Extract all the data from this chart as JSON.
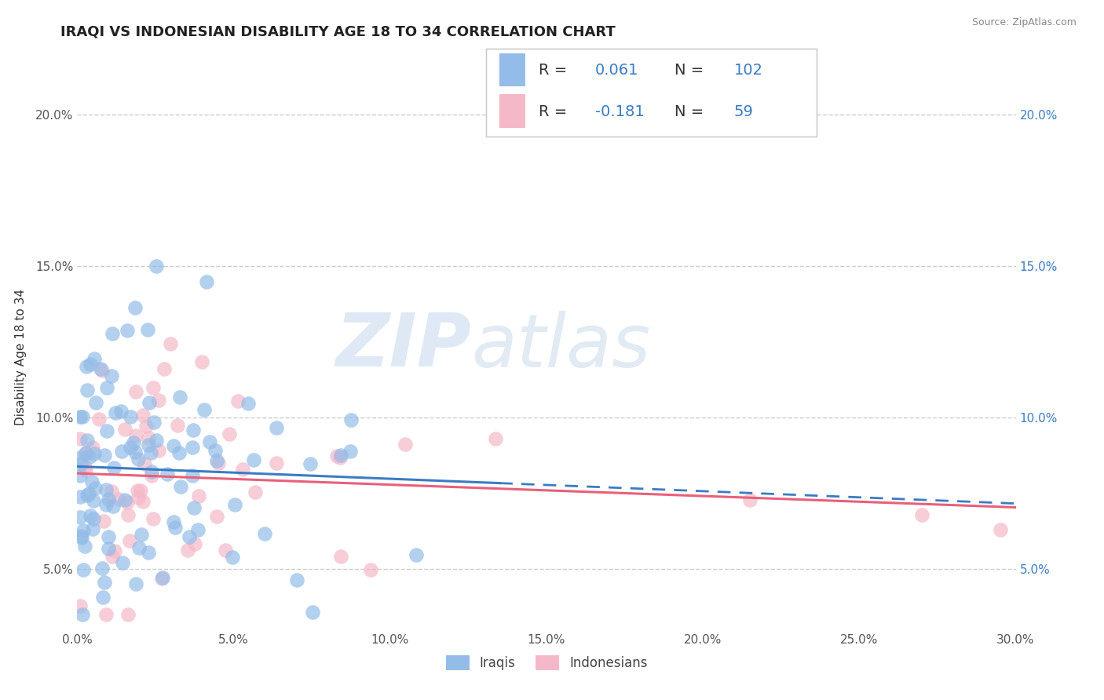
{
  "title": "IRAQI VS INDONESIAN DISABILITY AGE 18 TO 34 CORRELATION CHART",
  "ylabel": "Disability Age 18 to 34",
  "source_text": "Source: ZipAtlas.com",
  "xlim": [
    0.0,
    0.3
  ],
  "ylim": [
    0.03,
    0.21
  ],
  "xticks": [
    0.0,
    0.05,
    0.1,
    0.15,
    0.2,
    0.25,
    0.3
  ],
  "xtick_labels": [
    "0.0%",
    "5.0%",
    "10.0%",
    "15.0%",
    "20.0%",
    "25.0%",
    "30.0%"
  ],
  "yticks": [
    0.05,
    0.1,
    0.15,
    0.2
  ],
  "ytick_labels": [
    "5.0%",
    "10.0%",
    "15.0%",
    "20.0%"
  ],
  "iraqis_color": "#93bce8",
  "indonesians_color": "#f5b8c8",
  "iraqis_line_color": "#3a7cc4",
  "indonesians_line_color": "#e8607a",
  "R_iraqis": 0.061,
  "N_iraqis": 102,
  "R_indonesians": -0.181,
  "N_indonesians": 59,
  "legend_label_iraqis": "Iraqis",
  "legend_label_indonesians": "Indonesians",
  "watermark_zip": "ZIP",
  "watermark_atlas": "atlas",
  "title_fontsize": 13,
  "axis_label_fontsize": 11,
  "tick_fontsize": 11,
  "background_color": "#ffffff",
  "grid_color": "#cccccc",
  "legend_text_color": "#333333",
  "legend_value_color": "#3a7cc4",
  "right_axis_color": "#3a7cc4"
}
